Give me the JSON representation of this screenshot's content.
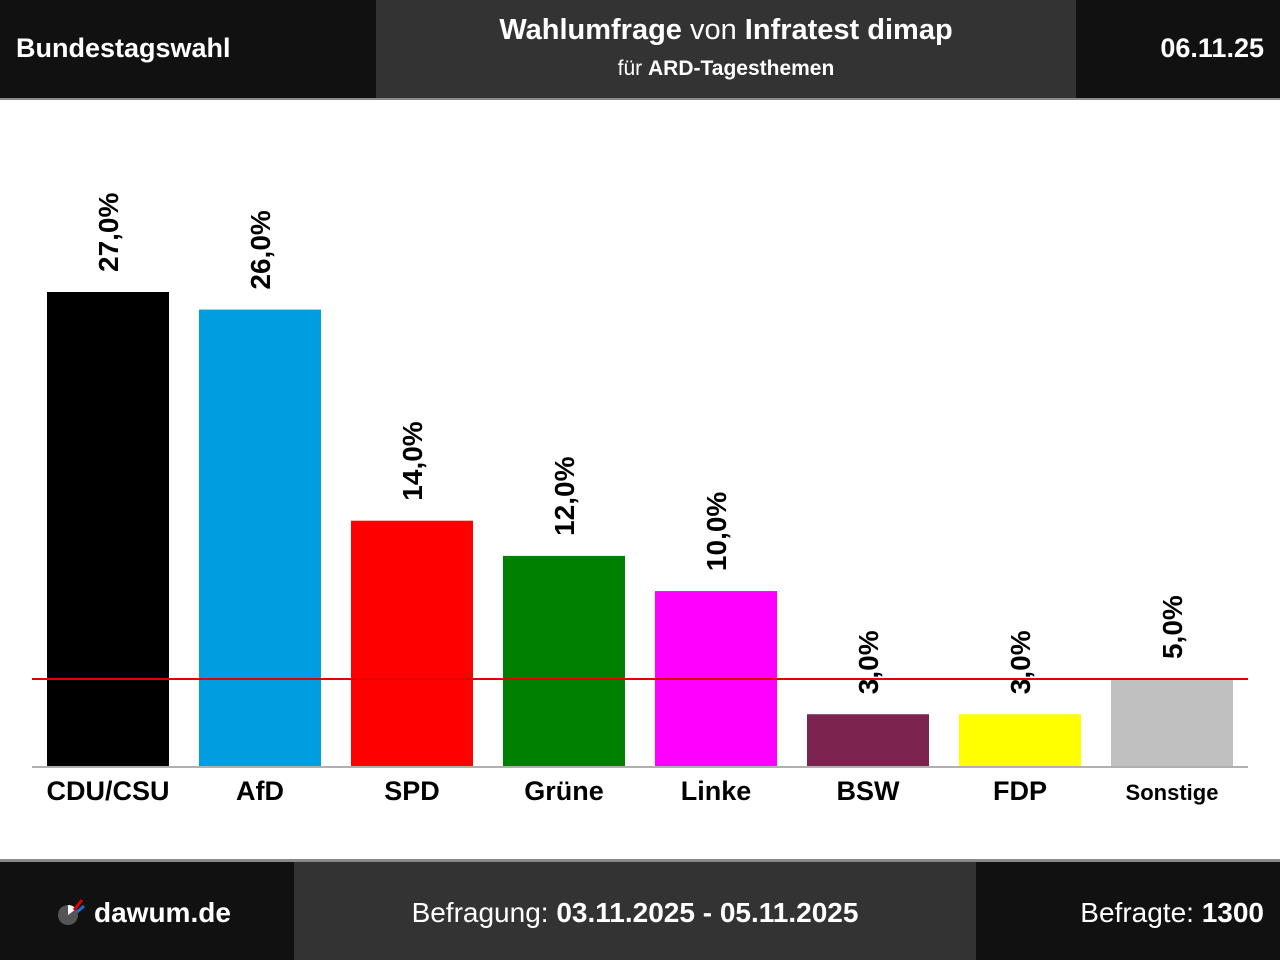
{
  "header": {
    "election": "Bundestagswahl",
    "title_part1": "Wahlumfrage",
    "title_part2": " von ",
    "title_part3": "Infratest dimap",
    "subtitle_part1": "für ",
    "subtitle_part2": "ARD-Tagesthemen",
    "date": "06.11.25"
  },
  "footer": {
    "brand": "dawum.de",
    "survey_label": "Befragung: ",
    "survey_period": "03.11.2025 - 05.11.2025",
    "respondents_label": "Befragte: ",
    "respondents_value": "1300"
  },
  "chart_data": {
    "type": "bar",
    "categories": [
      "CDU/CSU",
      "AfD",
      "SPD",
      "Grüne",
      "Linke",
      "BSW",
      "FDP",
      "Sonstige"
    ],
    "values": [
      27.0,
      26.0,
      14.0,
      12.0,
      10.0,
      3.0,
      3.0,
      5.0
    ],
    "value_labels": [
      "27,0%",
      "26,0%",
      "14,0%",
      "12,0%",
      "10,0%",
      "3,0%",
      "3,0%",
      "5,0%"
    ],
    "colors": [
      "#000000",
      "#009ee0",
      "#ff0000",
      "#008000",
      "#ff00ff",
      "#7b2450",
      "#ffff00",
      "#c0c0c0"
    ],
    "threshold": 5.0,
    "threshold_color": "#e00000",
    "ylim": [
      0,
      27.0
    ]
  }
}
